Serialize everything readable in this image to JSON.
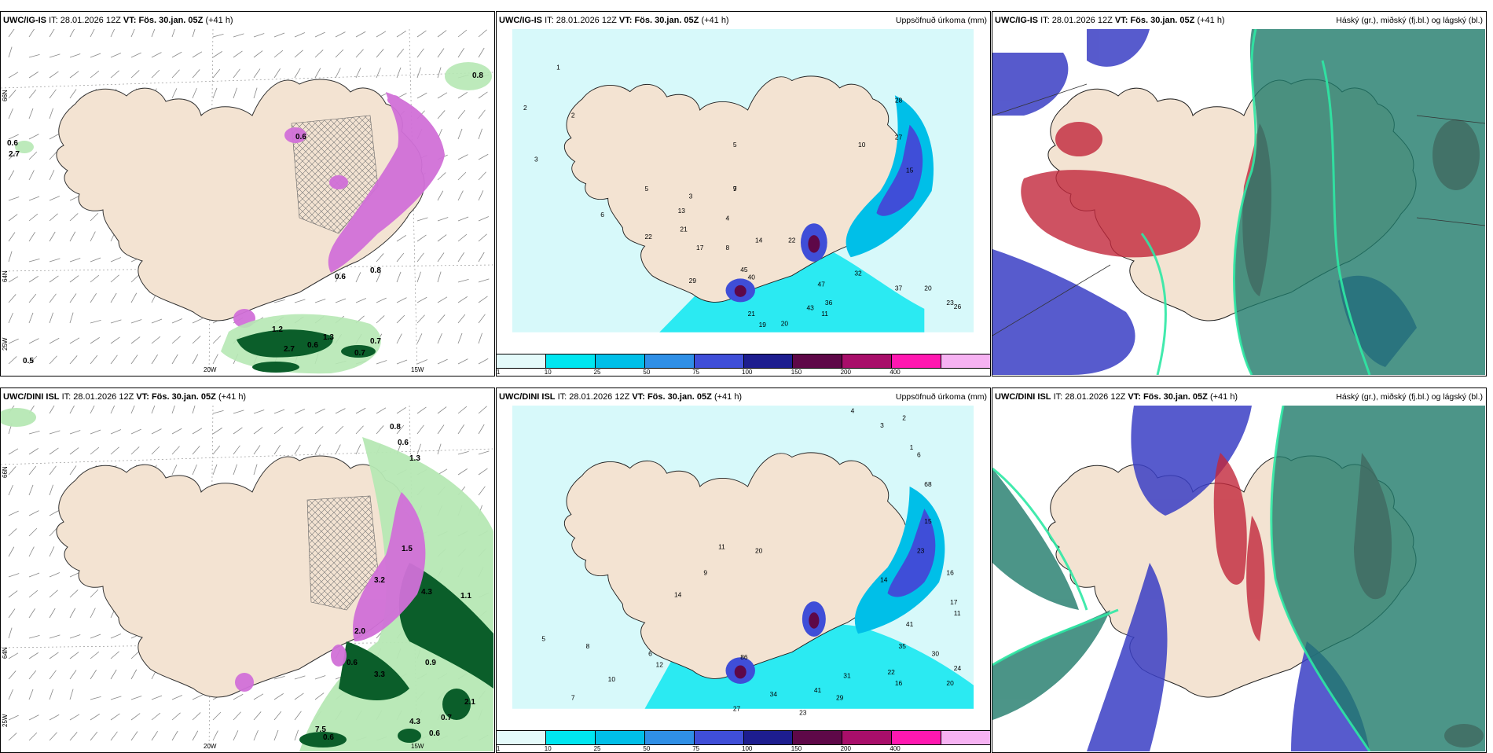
{
  "panels": [
    {
      "id": "top-left",
      "model": "UWC/IG-IS",
      "it_label": "IT:",
      "it_value": "28.01.2026 12Z",
      "vt_label": "VT:",
      "vt_value": "Fös. 30.jan. 05Z",
      "lead": "(+41 h)",
      "param": "",
      "lat_labels": [
        "66N",
        "64N",
        "25W"
      ],
      "lon_labels": [
        "20W",
        "15W"
      ],
      "values": [
        "0.8",
        "0.6",
        "2.7",
        "0.6",
        "0.5",
        "0.7",
        "0.6",
        "1.3",
        "2.7",
        "0.8",
        "0.6",
        "1.2",
        "0.7"
      ]
    },
    {
      "id": "top-middle",
      "model": "UWC/IG-IS",
      "it_label": "IT:",
      "it_value": "28.01.2026 12Z",
      "vt_label": "VT:",
      "vt_value": "Fös. 30.jan. 05Z",
      "lead": "(+41 h)",
      "param": "Uppsöfnuð úrkoma (mm)",
      "legend_ticks": [
        "1",
        "10",
        "25",
        "50",
        "75",
        "100",
        "150",
        "200",
        "400"
      ],
      "values": [
        "2",
        "3",
        "1",
        "2",
        "5",
        "3",
        "13",
        "21",
        "22",
        "7",
        "4",
        "8",
        "17",
        "14",
        "22",
        "40",
        "45",
        "29",
        "47",
        "32",
        "36",
        "43",
        "37",
        "20",
        "23",
        "26",
        "11",
        "19",
        "20",
        "21",
        "28",
        "10",
        "15",
        "27",
        "5",
        "9",
        "6"
      ]
    },
    {
      "id": "top-right",
      "model": "UWC/IG-IS",
      "it_label": "IT:",
      "it_value": "28.01.2026 12Z",
      "vt_label": "VT:",
      "vt_value": "Fös. 30.jan. 05Z",
      "lead": "(+41 h)",
      "param": "Háský (gr.), miðský (fj.bl.) og lágský (bl.)"
    },
    {
      "id": "bottom-left",
      "model": "UWC/DINI ISL",
      "it_label": "IT:",
      "it_value": "28.01.2026 12Z",
      "vt_label": "VT:",
      "vt_value": "Fös. 30.jan. 05Z",
      "lead": "(+41 h)",
      "param": "",
      "lat_labels": [
        "66N",
        "64N",
        "25W"
      ],
      "lon_labels": [
        "20W",
        "15W"
      ],
      "values": [
        "0.8",
        "0.6",
        "1.3",
        "1.5",
        "3.2",
        "4.3",
        "2.0",
        "0.6",
        "3.3",
        "0.9",
        "1.1",
        "2.1",
        "0.6",
        "7.5",
        "4.3",
        "0.7",
        "0.6"
      ]
    },
    {
      "id": "bottom-middle",
      "model": "UWC/DINI ISL",
      "it_label": "IT:",
      "it_value": "28.01.2026 12Z",
      "vt_label": "VT:",
      "vt_value": "Fös. 30.jan. 05Z",
      "lead": "(+41 h)",
      "param": "Uppsöfnuð úrkoma (mm)",
      "legend_ticks": [
        "1",
        "10",
        "25",
        "50",
        "75",
        "100",
        "150",
        "200",
        "400"
      ],
      "values": [
        "4",
        "3",
        "2",
        "1",
        "6",
        "14",
        "9",
        "20",
        "11",
        "23",
        "68",
        "15",
        "16",
        "17",
        "11",
        "14",
        "41",
        "35",
        "30",
        "24",
        "20",
        "22",
        "31",
        "41",
        "34",
        "29",
        "16",
        "27",
        "23",
        "12",
        "6",
        "86",
        "5",
        "8",
        "10",
        "7"
      ]
    },
    {
      "id": "bottom-right",
      "model": "UWC/DINI ISL",
      "it_label": "IT:",
      "it_value": "28.01.2026 12Z",
      "vt_label": "VT:",
      "vt_value": "Fös. 30.jan. 05Z",
      "lead": "(+41 h)",
      "param": "Háský (gr.), miðský (fj.bl.) og lágský (bl.)"
    }
  ],
  "colors": {
    "land": "#f3e3d2",
    "precip_scale": [
      "#e4fafa",
      "#00e6f0",
      "#00bfe8",
      "#2f8fe6",
      "#3f4ed8",
      "#1d1d8f",
      "#5e0848",
      "#a80e6a",
      "#ff18b0",
      "#f6b2f2"
    ],
    "snow_purple": "#d170d8",
    "green_dark": "#0b5e2a",
    "green_light": "#b6e8b4",
    "cloud_high": "#1f7a6a",
    "cloud_mid": "#c2273b",
    "cloud_low": "#3a3ec4"
  }
}
